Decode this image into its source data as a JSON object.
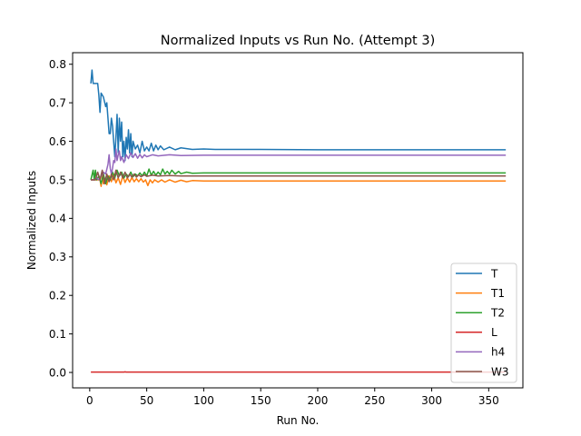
{
  "chart_data": {
    "type": "line",
    "title": "Normalized Inputs vs Run No. (Attempt 3)",
    "xlabel": "Run No.",
    "ylabel": "Normalized Inputs",
    "xlim": [
      -15,
      380
    ],
    "ylim": [
      -0.04,
      0.83
    ],
    "xticks": [
      0,
      50,
      100,
      150,
      200,
      250,
      300,
      350
    ],
    "xtick_labels": [
      "0",
      "50",
      "100",
      "150",
      "200",
      "250",
      "300",
      "350"
    ],
    "yticks": [
      0.0,
      0.1,
      0.2,
      0.3,
      0.4,
      0.5,
      0.6,
      0.7,
      0.8
    ],
    "ytick_labels": [
      "0.0",
      "0.1",
      "0.2",
      "0.3",
      "0.4",
      "0.5",
      "0.6",
      "0.7",
      "0.8"
    ],
    "grid": false,
    "legend_position": "lower-right",
    "series": [
      {
        "name": "T",
        "color": "#1f77b4",
        "points": [
          [
            1,
            0.75
          ],
          [
            2,
            0.785
          ],
          [
            3,
            0.75
          ],
          [
            5,
            0.75
          ],
          [
            7,
            0.75
          ],
          [
            8,
            0.72
          ],
          [
            9,
            0.675
          ],
          [
            10,
            0.725
          ],
          [
            12,
            0.715
          ],
          [
            14,
            0.69
          ],
          [
            15,
            0.7
          ],
          [
            16,
            0.66
          ],
          [
            17,
            0.62
          ],
          [
            18,
            0.62
          ],
          [
            19,
            0.66
          ],
          [
            20,
            0.64
          ],
          [
            21,
            0.6
          ],
          [
            22,
            0.56
          ],
          [
            23,
            0.61
          ],
          [
            24,
            0.67
          ],
          [
            25,
            0.57
          ],
          [
            26,
            0.66
          ],
          [
            27,
            0.6
          ],
          [
            28,
            0.65
          ],
          [
            29,
            0.56
          ],
          [
            30,
            0.6
          ],
          [
            31,
            0.55
          ],
          [
            32,
            0.61
          ],
          [
            33,
            0.58
          ],
          [
            34,
            0.63
          ],
          [
            35,
            0.57
          ],
          [
            36,
            0.62
          ],
          [
            37,
            0.56
          ],
          [
            38,
            0.6
          ],
          [
            40,
            0.58
          ],
          [
            42,
            0.59
          ],
          [
            44,
            0.57
          ],
          [
            46,
            0.6
          ],
          [
            48,
            0.575
          ],
          [
            50,
            0.585
          ],
          [
            52,
            0.575
          ],
          [
            54,
            0.595
          ],
          [
            56,
            0.575
          ],
          [
            58,
            0.59
          ],
          [
            60,
            0.578
          ],
          [
            62,
            0.588
          ],
          [
            65,
            0.578
          ],
          [
            70,
            0.585
          ],
          [
            75,
            0.578
          ],
          [
            80,
            0.583
          ],
          [
            90,
            0.579
          ],
          [
            100,
            0.58
          ],
          [
            110,
            0.579
          ],
          [
            150,
            0.579
          ],
          [
            200,
            0.578
          ],
          [
            250,
            0.578
          ],
          [
            300,
            0.578
          ],
          [
            365,
            0.578
          ]
        ]
      },
      {
        "name": "T1",
        "color": "#ff7f0e",
        "points": [
          [
            1,
            0.5
          ],
          [
            3,
            0.5
          ],
          [
            5,
            0.5
          ],
          [
            7,
            0.5
          ],
          [
            9,
            0.5
          ],
          [
            10,
            0.483
          ],
          [
            11,
            0.51
          ],
          [
            12,
            0.49
          ],
          [
            14,
            0.505
          ],
          [
            15,
            0.487
          ],
          [
            17,
            0.51
          ],
          [
            19,
            0.495
          ],
          [
            21,
            0.515
          ],
          [
            23,
            0.492
          ],
          [
            25,
            0.505
          ],
          [
            27,
            0.488
          ],
          [
            29,
            0.51
          ],
          [
            31,
            0.493
          ],
          [
            33,
            0.505
          ],
          [
            35,
            0.494
          ],
          [
            37,
            0.506
          ],
          [
            39,
            0.495
          ],
          [
            41,
            0.503
          ],
          [
            43,
            0.495
          ],
          [
            45,
            0.503
          ],
          [
            47,
            0.494
          ],
          [
            49,
            0.5
          ],
          [
            51,
            0.485
          ],
          [
            53,
            0.5
          ],
          [
            55,
            0.492
          ],
          [
            57,
            0.5
          ],
          [
            60,
            0.494
          ],
          [
            63,
            0.5
          ],
          [
            66,
            0.494
          ],
          [
            70,
            0.5
          ],
          [
            75,
            0.494
          ],
          [
            80,
            0.499
          ],
          [
            85,
            0.495
          ],
          [
            90,
            0.498
          ],
          [
            100,
            0.497
          ],
          [
            150,
            0.497
          ],
          [
            200,
            0.497
          ],
          [
            300,
            0.497
          ],
          [
            365,
            0.497
          ]
        ]
      },
      {
        "name": "T2",
        "color": "#2ca02c",
        "points": [
          [
            1,
            0.5
          ],
          [
            3,
            0.525
          ],
          [
            4,
            0.5
          ],
          [
            5,
            0.525
          ],
          [
            6,
            0.5
          ],
          [
            8,
            0.51
          ],
          [
            10,
            0.49
          ],
          [
            12,
            0.515
          ],
          [
            14,
            0.49
          ],
          [
            16,
            0.51
          ],
          [
            18,
            0.5
          ],
          [
            20,
            0.52
          ],
          [
            22,
            0.505
          ],
          [
            24,
            0.525
          ],
          [
            26,
            0.51
          ],
          [
            28,
            0.52
          ],
          [
            30,
            0.505
          ],
          [
            32,
            0.515
          ],
          [
            34,
            0.508
          ],
          [
            36,
            0.52
          ],
          [
            38,
            0.508
          ],
          [
            40,
            0.515
          ],
          [
            42,
            0.51
          ],
          [
            44,
            0.518
          ],
          [
            46,
            0.51
          ],
          [
            48,
            0.52
          ],
          [
            50,
            0.51
          ],
          [
            52,
            0.528
          ],
          [
            54,
            0.512
          ],
          [
            56,
            0.522
          ],
          [
            58,
            0.512
          ],
          [
            60,
            0.52
          ],
          [
            62,
            0.513
          ],
          [
            64,
            0.528
          ],
          [
            66,
            0.515
          ],
          [
            68,
            0.522
          ],
          [
            70,
            0.515
          ],
          [
            72,
            0.525
          ],
          [
            75,
            0.515
          ],
          [
            78,
            0.522
          ],
          [
            80,
            0.516
          ],
          [
            85,
            0.52
          ],
          [
            90,
            0.517
          ],
          [
            100,
            0.518
          ],
          [
            150,
            0.518
          ],
          [
            200,
            0.518
          ],
          [
            300,
            0.518
          ],
          [
            365,
            0.518
          ]
        ]
      },
      {
        "name": "L",
        "color": "#d62728",
        "points": [
          [
            1,
            0.001
          ],
          [
            30,
            0.001
          ],
          [
            31,
            0.0015
          ],
          [
            32,
            0.001
          ],
          [
            100,
            0.001
          ],
          [
            200,
            0.001
          ],
          [
            300,
            0.001
          ],
          [
            365,
            0.001
          ]
        ]
      },
      {
        "name": "h4",
        "color": "#9467bd",
        "points": [
          [
            1,
            0.5
          ],
          [
            4,
            0.5
          ],
          [
            6,
            0.505
          ],
          [
            8,
            0.5
          ],
          [
            10,
            0.51
          ],
          [
            12,
            0.52
          ],
          [
            14,
            0.515
          ],
          [
            16,
            0.54
          ],
          [
            17,
            0.565
          ],
          [
            18,
            0.53
          ],
          [
            19,
            0.515
          ],
          [
            20,
            0.53
          ],
          [
            21,
            0.55
          ],
          [
            22,
            0.545
          ],
          [
            23,
            0.58
          ],
          [
            24,
            0.55
          ],
          [
            25,
            0.565
          ],
          [
            26,
            0.575
          ],
          [
            27,
            0.55
          ],
          [
            28,
            0.56
          ],
          [
            30,
            0.545
          ],
          [
            32,
            0.565
          ],
          [
            34,
            0.555
          ],
          [
            36,
            0.57
          ],
          [
            38,
            0.558
          ],
          [
            40,
            0.568
          ],
          [
            42,
            0.556
          ],
          [
            44,
            0.566
          ],
          [
            46,
            0.557
          ],
          [
            48,
            0.565
          ],
          [
            50,
            0.56
          ],
          [
            55,
            0.565
          ],
          [
            60,
            0.562
          ],
          [
            70,
            0.565
          ],
          [
            80,
            0.563
          ],
          [
            100,
            0.564
          ],
          [
            150,
            0.564
          ],
          [
            200,
            0.564
          ],
          [
            300,
            0.564
          ],
          [
            365,
            0.564
          ]
        ]
      },
      {
        "name": "W3",
        "color": "#8c564b",
        "points": [
          [
            1,
            0.5
          ],
          [
            5,
            0.5
          ],
          [
            7,
            0.52
          ],
          [
            9,
            0.5
          ],
          [
            11,
            0.525
          ],
          [
            13,
            0.49
          ],
          [
            15,
            0.515
          ],
          [
            17,
            0.495
          ],
          [
            19,
            0.515
          ],
          [
            21,
            0.5
          ],
          [
            23,
            0.525
          ],
          [
            25,
            0.505
          ],
          [
            27,
            0.52
          ],
          [
            29,
            0.505
          ],
          [
            31,
            0.52
          ],
          [
            33,
            0.505
          ],
          [
            35,
            0.515
          ],
          [
            37,
            0.507
          ],
          [
            39,
            0.515
          ],
          [
            41,
            0.507
          ],
          [
            43,
            0.513
          ],
          [
            45,
            0.508
          ],
          [
            48,
            0.513
          ],
          [
            50,
            0.509
          ],
          [
            55,
            0.512
          ],
          [
            60,
            0.51
          ],
          [
            70,
            0.511
          ],
          [
            80,
            0.51
          ],
          [
            100,
            0.51
          ],
          [
            150,
            0.51
          ],
          [
            200,
            0.51
          ],
          [
            300,
            0.51
          ],
          [
            365,
            0.51
          ]
        ]
      }
    ]
  }
}
